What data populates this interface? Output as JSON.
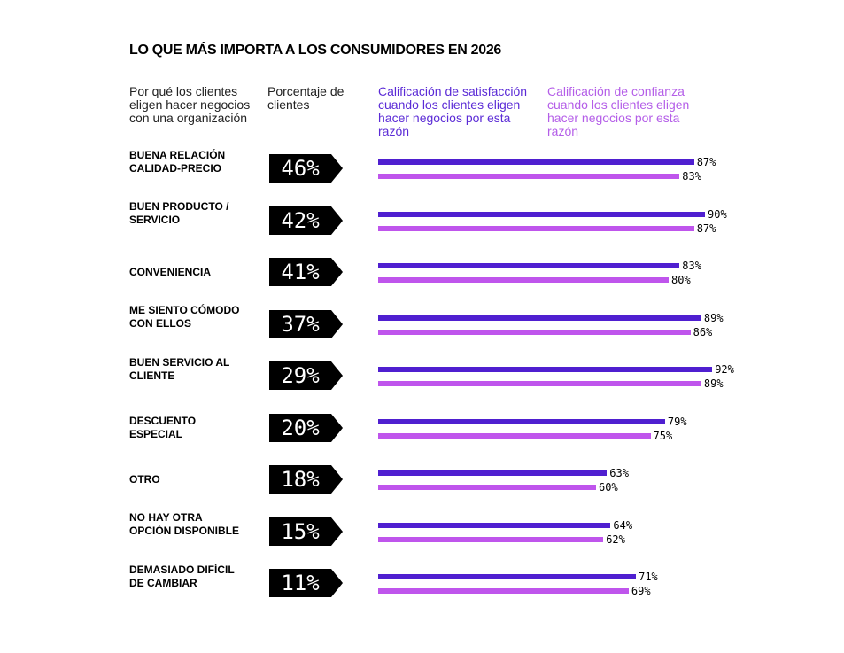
{
  "chart_data": {
    "type": "bar",
    "title": "LO QUE MÁS IMPORTA A LOS CONSUMIDORES EN 2026",
    "headers": [
      "Por qué los clientes eligen hacer negocios con una organización",
      "Porcentaje de clientes",
      "Calificación de satisfacción cuando los clientes eligen hacer negocios por esta razón",
      "Calificación de confianza cuando los clientes eligen hacer negocios por esta razón"
    ],
    "categories": [
      "BUENA RELACIÓN CALIDAD-PRECIO",
      "BUEN PRODUCTO / SERVICIO",
      "CONVENIENCIA",
      "ME SIENTO CÓMODO CON ELLOS",
      "BUEN SERVICIO AL CLIENTE",
      "DESCUENTO ESPECIAL",
      "OTRO",
      "NO HAY OTRA OPCIÓN DISPONIBLE",
      "DEMASIADO DIFÍCIL DE CAMBIAR"
    ],
    "percent_customers": [
      46,
      42,
      41,
      37,
      29,
      20,
      18,
      15,
      11
    ],
    "series": [
      {
        "name": "Calificación de satisfacción cuando los clientes eligen hacer negocios por esta razón",
        "color": "#4f1fd0",
        "values": [
          87,
          90,
          83,
          89,
          92,
          79,
          63,
          64,
          71
        ]
      },
      {
        "name": "Calificación de confianza cuando los clientes eligen hacer negocios por esta razón",
        "color": "#bf55ec",
        "values": [
          83,
          87,
          80,
          86,
          89,
          75,
          60,
          62,
          69
        ]
      }
    ],
    "ylim": [
      0,
      100
    ]
  }
}
